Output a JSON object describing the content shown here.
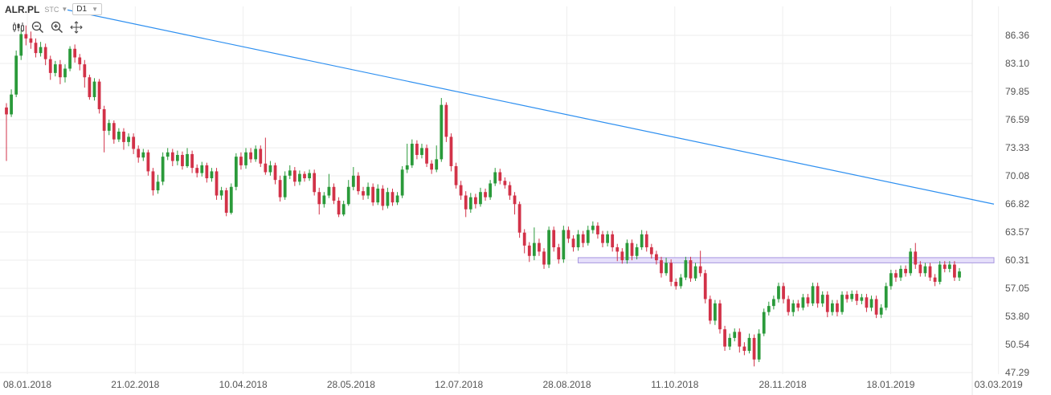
{
  "header": {
    "symbol": "ALR.PL",
    "mode": "STC",
    "timeframe": "D1"
  },
  "tools": [
    {
      "icon": "candles-icon"
    },
    {
      "icon": "zoom-out-icon"
    },
    {
      "icon": "zoom-in-icon"
    },
    {
      "icon": "move-icon"
    }
  ],
  "colors": {
    "up": "#2a9a3a",
    "down": "#d23248",
    "trendline": "#2d8ff0",
    "zone_fill": "#e6e0fa",
    "zone_stroke": "#a796e0",
    "grid": "#eeeeee",
    "text": "#555555"
  },
  "chart_data": {
    "type": "candlestick",
    "y_ticks": [
      "86.36",
      "83.10",
      "79.85",
      "76.59",
      "73.33",
      "70.08",
      "66.82",
      "63.57",
      "60.31",
      "57.05",
      "53.80",
      "50.54",
      "47.29"
    ],
    "x_ticks": [
      "08.01.2018",
      "21.02.2018",
      "10.04.2018",
      "28.05.2018",
      "12.07.2018",
      "28.08.2018",
      "11.10.2018",
      "28.11.2018",
      "18.01.2019",
      "03.03.2019"
    ],
    "ylim": [
      47.29,
      86.36
    ],
    "grid": true,
    "trendline": {
      "start": {
        "date": "08.01.2018",
        "price": 89.3
      },
      "end": {
        "date": "03.03.2019",
        "price": 66.8
      }
    },
    "resistance_zone": {
      "from_date": "28.08.2018",
      "to_date": "03.03.2019",
      "low": 60.0,
      "high": 60.6
    },
    "candles": [
      {
        "o": 78.0,
        "c": 77.2,
        "h": 78.5,
        "l": 71.8
      },
      {
        "o": 77.2,
        "c": 79.5,
        "h": 80.1,
        "l": 76.9
      },
      {
        "o": 79.5,
        "c": 84.0,
        "h": 84.6,
        "l": 79.2
      },
      {
        "o": 84.0,
        "c": 86.5,
        "h": 87.2,
        "l": 83.5
      },
      {
        "o": 86.5,
        "c": 86.0,
        "h": 87.5,
        "l": 85.2
      },
      {
        "o": 86.0,
        "c": 85.5,
        "h": 86.8,
        "l": 84.8
      },
      {
        "o": 85.5,
        "c": 84.3,
        "h": 86.0,
        "l": 83.8
      },
      {
        "o": 84.3,
        "c": 85.0,
        "h": 85.6,
        "l": 83.9
      },
      {
        "o": 85.0,
        "c": 83.6,
        "h": 85.4,
        "l": 82.9
      },
      {
        "o": 83.6,
        "c": 82.0,
        "h": 84.0,
        "l": 81.2
      },
      {
        "o": 82.0,
        "c": 83.0,
        "h": 83.4,
        "l": 81.6
      },
      {
        "o": 83.0,
        "c": 81.5,
        "h": 83.5,
        "l": 80.7
      },
      {
        "o": 81.5,
        "c": 82.5,
        "h": 83.0,
        "l": 80.9
      },
      {
        "o": 82.5,
        "c": 84.8,
        "h": 85.1,
        "l": 82.2
      },
      {
        "o": 84.8,
        "c": 83.8,
        "h": 85.3,
        "l": 83.2
      },
      {
        "o": 83.8,
        "c": 83.0,
        "h": 84.2,
        "l": 82.3
      },
      {
        "o": 83.0,
        "c": 81.5,
        "h": 83.5,
        "l": 80.3
      },
      {
        "o": 81.5,
        "c": 79.2,
        "h": 81.8,
        "l": 78.9
      },
      {
        "o": 79.2,
        "c": 81.0,
        "h": 81.4,
        "l": 78.8
      },
      {
        "o": 81.0,
        "c": 77.8,
        "h": 81.3,
        "l": 77.3
      },
      {
        "o": 77.8,
        "c": 75.3,
        "h": 78.2,
        "l": 72.8
      },
      {
        "o": 75.3,
        "c": 76.2,
        "h": 76.6,
        "l": 74.8
      },
      {
        "o": 76.2,
        "c": 74.3,
        "h": 76.5,
        "l": 73.8
      },
      {
        "o": 74.3,
        "c": 75.2,
        "h": 75.6,
        "l": 74.0
      },
      {
        "o": 75.2,
        "c": 74.0,
        "h": 75.6,
        "l": 73.1
      },
      {
        "o": 74.0,
        "c": 74.6,
        "h": 75.0,
        "l": 73.5
      },
      {
        "o": 74.6,
        "c": 73.2,
        "h": 75.0,
        "l": 72.6
      },
      {
        "o": 73.2,
        "c": 72.2,
        "h": 73.6,
        "l": 71.6
      },
      {
        "o": 72.2,
        "c": 72.8,
        "h": 73.2,
        "l": 71.8
      },
      {
        "o": 72.8,
        "c": 70.6,
        "h": 73.1,
        "l": 70.1
      },
      {
        "o": 70.6,
        "c": 68.4,
        "h": 71.0,
        "l": 67.8
      },
      {
        "o": 68.4,
        "c": 69.4,
        "h": 70.2,
        "l": 68.0
      },
      {
        "o": 69.4,
        "c": 72.3,
        "h": 72.8,
        "l": 69.0
      },
      {
        "o": 72.3,
        "c": 72.8,
        "h": 73.3,
        "l": 71.9
      },
      {
        "o": 72.8,
        "c": 71.8,
        "h": 73.2,
        "l": 71.2
      },
      {
        "o": 71.8,
        "c": 72.5,
        "h": 73.0,
        "l": 71.3
      },
      {
        "o": 72.5,
        "c": 71.2,
        "h": 72.9,
        "l": 70.8
      },
      {
        "o": 71.2,
        "c": 72.6,
        "h": 73.3,
        "l": 71.0
      },
      {
        "o": 72.6,
        "c": 71.0,
        "h": 73.0,
        "l": 70.4
      },
      {
        "o": 71.0,
        "c": 70.4,
        "h": 71.4,
        "l": 69.9
      },
      {
        "o": 70.4,
        "c": 71.3,
        "h": 71.7,
        "l": 70.0
      },
      {
        "o": 71.3,
        "c": 69.8,
        "h": 71.6,
        "l": 69.3
      },
      {
        "o": 69.8,
        "c": 70.6,
        "h": 71.0,
        "l": 69.4
      },
      {
        "o": 70.6,
        "c": 67.8,
        "h": 71.0,
        "l": 67.3
      },
      {
        "o": 67.8,
        "c": 68.4,
        "h": 68.8,
        "l": 67.3
      },
      {
        "o": 68.4,
        "c": 65.8,
        "h": 68.7,
        "l": 65.4
      },
      {
        "o": 65.8,
        "c": 68.8,
        "h": 69.2,
        "l": 65.6
      },
      {
        "o": 68.8,
        "c": 72.3,
        "h": 72.7,
        "l": 68.4
      },
      {
        "o": 72.3,
        "c": 71.3,
        "h": 72.8,
        "l": 70.8
      },
      {
        "o": 71.3,
        "c": 72.8,
        "h": 73.3,
        "l": 70.9
      },
      {
        "o": 72.8,
        "c": 72.0,
        "h": 73.3,
        "l": 71.6
      },
      {
        "o": 72.0,
        "c": 73.2,
        "h": 73.6,
        "l": 71.7
      },
      {
        "o": 73.2,
        "c": 71.5,
        "h": 73.6,
        "l": 71.1
      },
      {
        "o": 71.5,
        "c": 70.5,
        "h": 74.5,
        "l": 70.2
      },
      {
        "o": 70.5,
        "c": 71.3,
        "h": 71.8,
        "l": 70.1
      },
      {
        "o": 71.3,
        "c": 69.6,
        "h": 71.6,
        "l": 69.1
      },
      {
        "o": 69.6,
        "c": 67.6,
        "h": 70.1,
        "l": 67.1
      },
      {
        "o": 67.6,
        "c": 70.1,
        "h": 70.6,
        "l": 67.3
      },
      {
        "o": 70.1,
        "c": 70.7,
        "h": 71.3,
        "l": 69.7
      },
      {
        "o": 70.7,
        "c": 69.4,
        "h": 71.1,
        "l": 68.9
      },
      {
        "o": 69.4,
        "c": 70.3,
        "h": 70.7,
        "l": 69.0
      },
      {
        "o": 70.3,
        "c": 69.8,
        "h": 70.6,
        "l": 69.4
      },
      {
        "o": 69.8,
        "c": 70.4,
        "h": 70.8,
        "l": 69.5
      },
      {
        "o": 70.4,
        "c": 68.2,
        "h": 70.8,
        "l": 67.8
      },
      {
        "o": 68.2,
        "c": 66.8,
        "h": 68.7,
        "l": 65.6
      },
      {
        "o": 66.8,
        "c": 67.8,
        "h": 68.2,
        "l": 66.4
      },
      {
        "o": 67.8,
        "c": 68.8,
        "h": 70.3,
        "l": 67.5
      },
      {
        "o": 68.8,
        "c": 67.2,
        "h": 69.2,
        "l": 66.8
      },
      {
        "o": 67.2,
        "c": 65.6,
        "h": 67.6,
        "l": 65.3
      },
      {
        "o": 65.6,
        "c": 66.8,
        "h": 67.2,
        "l": 65.4
      },
      {
        "o": 66.8,
        "c": 68.8,
        "h": 69.6,
        "l": 66.6
      },
      {
        "o": 68.8,
        "c": 70.1,
        "h": 71.1,
        "l": 68.4
      },
      {
        "o": 70.1,
        "c": 68.3,
        "h": 70.5,
        "l": 67.9
      },
      {
        "o": 68.3,
        "c": 67.8,
        "h": 68.8,
        "l": 67.3
      },
      {
        "o": 67.8,
        "c": 68.8,
        "h": 69.3,
        "l": 67.4
      },
      {
        "o": 68.8,
        "c": 67.0,
        "h": 69.2,
        "l": 66.6
      },
      {
        "o": 67.0,
        "c": 68.6,
        "h": 69.1,
        "l": 66.7
      },
      {
        "o": 68.6,
        "c": 66.6,
        "h": 69.0,
        "l": 66.1
      },
      {
        "o": 66.6,
        "c": 68.2,
        "h": 68.7,
        "l": 66.3
      },
      {
        "o": 68.2,
        "c": 67.0,
        "h": 68.6,
        "l": 66.6
      },
      {
        "o": 67.0,
        "c": 67.8,
        "h": 68.2,
        "l": 66.7
      },
      {
        "o": 67.8,
        "c": 70.8,
        "h": 71.2,
        "l": 67.5
      },
      {
        "o": 70.8,
        "c": 71.3,
        "h": 73.8,
        "l": 70.4
      },
      {
        "o": 71.3,
        "c": 73.8,
        "h": 74.3,
        "l": 71.0
      },
      {
        "o": 73.8,
        "c": 72.5,
        "h": 74.2,
        "l": 72.0
      },
      {
        "o": 72.5,
        "c": 73.3,
        "h": 73.8,
        "l": 72.1
      },
      {
        "o": 73.3,
        "c": 71.5,
        "h": 73.7,
        "l": 71.1
      },
      {
        "o": 71.5,
        "c": 70.8,
        "h": 71.9,
        "l": 70.3
      },
      {
        "o": 70.8,
        "c": 72.0,
        "h": 73.6,
        "l": 70.5
      },
      {
        "o": 72.0,
        "c": 78.3,
        "h": 79.1,
        "l": 71.7
      },
      {
        "o": 78.3,
        "c": 74.6,
        "h": 78.6,
        "l": 74.0
      },
      {
        "o": 74.6,
        "c": 71.2,
        "h": 75.0,
        "l": 70.6
      },
      {
        "o": 71.2,
        "c": 69.0,
        "h": 71.6,
        "l": 68.6
      },
      {
        "o": 69.0,
        "c": 67.8,
        "h": 69.5,
        "l": 67.3
      },
      {
        "o": 67.8,
        "c": 66.2,
        "h": 68.3,
        "l": 65.3
      },
      {
        "o": 66.2,
        "c": 67.6,
        "h": 68.1,
        "l": 65.8
      },
      {
        "o": 67.6,
        "c": 66.8,
        "h": 68.0,
        "l": 66.3
      },
      {
        "o": 66.8,
        "c": 68.2,
        "h": 68.7,
        "l": 66.5
      },
      {
        "o": 68.2,
        "c": 67.6,
        "h": 68.6,
        "l": 67.2
      },
      {
        "o": 67.6,
        "c": 69.2,
        "h": 69.6,
        "l": 67.3
      },
      {
        "o": 69.2,
        "c": 70.5,
        "h": 71.0,
        "l": 68.9
      },
      {
        "o": 70.5,
        "c": 69.5,
        "h": 70.9,
        "l": 69.1
      },
      {
        "o": 69.5,
        "c": 69.0,
        "h": 69.9,
        "l": 68.6
      },
      {
        "o": 69.0,
        "c": 67.8,
        "h": 69.4,
        "l": 67.3
      },
      {
        "o": 67.8,
        "c": 66.8,
        "h": 68.2,
        "l": 65.6
      },
      {
        "o": 66.8,
        "c": 63.5,
        "h": 67.1,
        "l": 62.9
      },
      {
        "o": 63.5,
        "c": 62.0,
        "h": 63.9,
        "l": 61.1
      },
      {
        "o": 62.0,
        "c": 60.8,
        "h": 62.4,
        "l": 60.1
      },
      {
        "o": 60.8,
        "c": 62.3,
        "h": 64.1,
        "l": 60.3
      },
      {
        "o": 62.3,
        "c": 61.3,
        "h": 62.8,
        "l": 60.8
      },
      {
        "o": 61.3,
        "c": 59.8,
        "h": 61.7,
        "l": 59.3
      },
      {
        "o": 59.8,
        "c": 63.8,
        "h": 64.2,
        "l": 59.4
      },
      {
        "o": 63.8,
        "c": 61.8,
        "h": 64.2,
        "l": 61.3
      },
      {
        "o": 61.8,
        "c": 60.4,
        "h": 62.2,
        "l": 59.9
      },
      {
        "o": 60.4,
        "c": 63.8,
        "h": 64.3,
        "l": 60.0
      },
      {
        "o": 63.8,
        "c": 62.8,
        "h": 64.2,
        "l": 62.3
      },
      {
        "o": 62.8,
        "c": 61.8,
        "h": 63.2,
        "l": 61.3
      },
      {
        "o": 61.8,
        "c": 63.3,
        "h": 63.8,
        "l": 61.4
      },
      {
        "o": 63.3,
        "c": 62.3,
        "h": 63.7,
        "l": 61.8
      },
      {
        "o": 62.3,
        "c": 63.8,
        "h": 64.3,
        "l": 62.0
      },
      {
        "o": 63.8,
        "c": 64.3,
        "h": 64.8,
        "l": 63.4
      },
      {
        "o": 64.3,
        "c": 63.3,
        "h": 64.7,
        "l": 62.8
      },
      {
        "o": 63.3,
        "c": 62.3,
        "h": 63.7,
        "l": 61.8
      },
      {
        "o": 62.3,
        "c": 63.3,
        "h": 63.7,
        "l": 61.9
      },
      {
        "o": 63.3,
        "c": 61.8,
        "h": 63.7,
        "l": 61.3
      },
      {
        "o": 61.8,
        "c": 61.3,
        "h": 62.2,
        "l": 60.2
      },
      {
        "o": 61.3,
        "c": 60.3,
        "h": 61.7,
        "l": 59.9
      },
      {
        "o": 60.3,
        "c": 62.3,
        "h": 62.7,
        "l": 59.9
      },
      {
        "o": 62.3,
        "c": 60.8,
        "h": 62.7,
        "l": 60.3
      },
      {
        "o": 60.8,
        "c": 61.8,
        "h": 62.2,
        "l": 60.4
      },
      {
        "o": 61.8,
        "c": 63.3,
        "h": 63.8,
        "l": 61.5
      },
      {
        "o": 63.3,
        "c": 61.8,
        "h": 63.7,
        "l": 61.3
      },
      {
        "o": 61.8,
        "c": 61.0,
        "h": 62.2,
        "l": 60.5
      },
      {
        "o": 61.0,
        "c": 60.3,
        "h": 61.4,
        "l": 59.8
      },
      {
        "o": 60.3,
        "c": 58.8,
        "h": 60.7,
        "l": 58.3
      },
      {
        "o": 58.8,
        "c": 60.0,
        "h": 60.6,
        "l": 58.5
      },
      {
        "o": 60.0,
        "c": 57.8,
        "h": 60.4,
        "l": 57.3
      },
      {
        "o": 57.8,
        "c": 57.3,
        "h": 58.2,
        "l": 56.9
      },
      {
        "o": 57.3,
        "c": 58.3,
        "h": 58.7,
        "l": 57.0
      },
      {
        "o": 58.3,
        "c": 60.3,
        "h": 60.7,
        "l": 58.0
      },
      {
        "o": 60.3,
        "c": 58.2,
        "h": 60.7,
        "l": 57.8
      },
      {
        "o": 58.2,
        "c": 59.6,
        "h": 60.0,
        "l": 57.9
      },
      {
        "o": 59.6,
        "c": 58.8,
        "h": 61.4,
        "l": 58.4
      },
      {
        "o": 58.8,
        "c": 55.8,
        "h": 59.2,
        "l": 55.3
      },
      {
        "o": 55.8,
        "c": 53.3,
        "h": 56.2,
        "l": 52.9
      },
      {
        "o": 53.3,
        "c": 55.3,
        "h": 55.7,
        "l": 52.8
      },
      {
        "o": 55.3,
        "c": 52.3,
        "h": 55.7,
        "l": 51.8
      },
      {
        "o": 52.3,
        "c": 50.3,
        "h": 52.7,
        "l": 49.8
      },
      {
        "o": 50.3,
        "c": 51.3,
        "h": 51.8,
        "l": 49.9
      },
      {
        "o": 51.3,
        "c": 52.0,
        "h": 52.4,
        "l": 50.9
      },
      {
        "o": 52.0,
        "c": 50.3,
        "h": 52.4,
        "l": 49.6
      },
      {
        "o": 50.3,
        "c": 49.8,
        "h": 50.8,
        "l": 49.3
      },
      {
        "o": 49.8,
        "c": 51.3,
        "h": 51.8,
        "l": 49.5
      },
      {
        "o": 51.3,
        "c": 48.8,
        "h": 51.7,
        "l": 48.0
      },
      {
        "o": 48.8,
        "c": 51.8,
        "h": 52.3,
        "l": 48.5
      },
      {
        "o": 51.8,
        "c": 54.3,
        "h": 54.7,
        "l": 51.5
      },
      {
        "o": 54.3,
        "c": 55.0,
        "h": 55.5,
        "l": 53.9
      },
      {
        "o": 55.0,
        "c": 55.8,
        "h": 56.2,
        "l": 54.6
      },
      {
        "o": 55.8,
        "c": 57.3,
        "h": 57.7,
        "l": 55.4
      },
      {
        "o": 57.3,
        "c": 55.8,
        "h": 57.7,
        "l": 55.3
      },
      {
        "o": 55.8,
        "c": 54.3,
        "h": 56.2,
        "l": 53.9
      },
      {
        "o": 54.3,
        "c": 55.3,
        "h": 55.7,
        "l": 53.8
      },
      {
        "o": 55.3,
        "c": 54.8,
        "h": 55.7,
        "l": 54.4
      },
      {
        "o": 54.8,
        "c": 56.0,
        "h": 56.4,
        "l": 54.5
      },
      {
        "o": 56.0,
        "c": 55.3,
        "h": 56.4,
        "l": 54.9
      },
      {
        "o": 55.3,
        "c": 57.3,
        "h": 57.7,
        "l": 55.0
      },
      {
        "o": 57.3,
        "c": 55.3,
        "h": 57.7,
        "l": 54.8
      },
      {
        "o": 55.3,
        "c": 56.3,
        "h": 56.7,
        "l": 54.9
      },
      {
        "o": 56.3,
        "c": 54.3,
        "h": 56.7,
        "l": 53.7
      },
      {
        "o": 54.3,
        "c": 55.3,
        "h": 55.7,
        "l": 53.9
      },
      {
        "o": 55.3,
        "c": 54.3,
        "h": 55.7,
        "l": 53.8
      },
      {
        "o": 54.3,
        "c": 56.3,
        "h": 56.7,
        "l": 54.0
      },
      {
        "o": 56.3,
        "c": 55.8,
        "h": 56.7,
        "l": 55.4
      },
      {
        "o": 55.8,
        "c": 56.4,
        "h": 56.8,
        "l": 55.5
      },
      {
        "o": 56.4,
        "c": 55.6,
        "h": 56.8,
        "l": 55.1
      },
      {
        "o": 55.6,
        "c": 56.0,
        "h": 56.4,
        "l": 55.2
      },
      {
        "o": 56.0,
        "c": 54.8,
        "h": 56.4,
        "l": 54.3
      },
      {
        "o": 54.8,
        "c": 55.8,
        "h": 56.2,
        "l": 54.4
      },
      {
        "o": 55.8,
        "c": 54.0,
        "h": 56.2,
        "l": 53.6
      },
      {
        "o": 54.0,
        "c": 54.8,
        "h": 55.2,
        "l": 53.6
      },
      {
        "o": 54.8,
        "c": 57.3,
        "h": 57.7,
        "l": 54.5
      },
      {
        "o": 57.3,
        "c": 58.8,
        "h": 59.2,
        "l": 56.9
      },
      {
        "o": 58.8,
        "c": 58.3,
        "h": 59.2,
        "l": 57.8
      },
      {
        "o": 58.3,
        "c": 59.3,
        "h": 59.7,
        "l": 57.9
      },
      {
        "o": 59.3,
        "c": 58.8,
        "h": 59.7,
        "l": 58.4
      },
      {
        "o": 58.8,
        "c": 61.3,
        "h": 61.7,
        "l": 58.5
      },
      {
        "o": 61.3,
        "c": 59.8,
        "h": 62.3,
        "l": 59.3
      },
      {
        "o": 59.8,
        "c": 58.8,
        "h": 60.2,
        "l": 58.4
      },
      {
        "o": 58.8,
        "c": 59.6,
        "h": 60.0,
        "l": 58.4
      },
      {
        "o": 59.6,
        "c": 58.3,
        "h": 60.0,
        "l": 57.9
      },
      {
        "o": 58.3,
        "c": 57.8,
        "h": 58.7,
        "l": 57.3
      },
      {
        "o": 57.8,
        "c": 59.8,
        "h": 60.2,
        "l": 57.5
      },
      {
        "o": 59.8,
        "c": 59.3,
        "h": 60.2,
        "l": 58.9
      },
      {
        "o": 59.3,
        "c": 59.8,
        "h": 60.2,
        "l": 58.9
      },
      {
        "o": 59.8,
        "c": 58.3,
        "h": 60.2,
        "l": 57.9
      },
      {
        "o": 58.3,
        "c": 59.0,
        "h": 59.4,
        "l": 57.9
      }
    ]
  }
}
